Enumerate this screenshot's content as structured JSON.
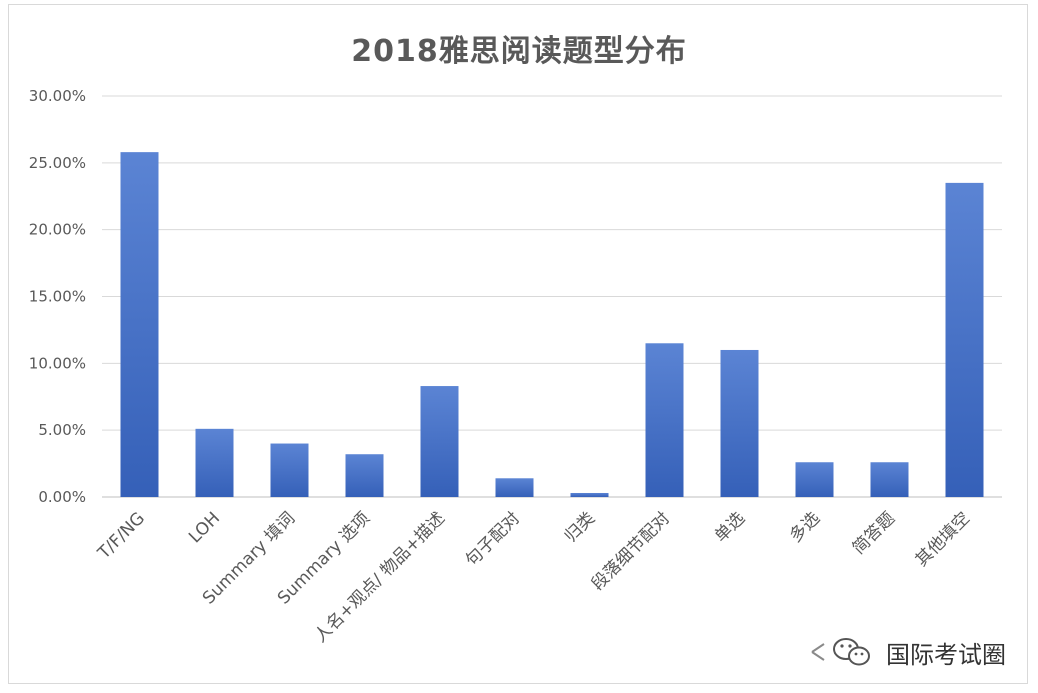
{
  "chart_data": {
    "type": "bar",
    "title": "2018雅思阅读题型分布",
    "categories": [
      "T/F/NG",
      "LOH",
      "Summary 填词",
      "Summary 选项",
      "人名+观点/ 物品+描述",
      "句子配对",
      "归类",
      "段落细节配对",
      "单选",
      "多选",
      "简答题",
      "其他填空"
    ],
    "values": [
      25.8,
      5.1,
      4.0,
      3.2,
      8.3,
      1.4,
      0.3,
      11.5,
      11.0,
      2.6,
      2.6,
      23.5
    ],
    "y_ticks": [
      "0.00%",
      "5.00%",
      "10.00%",
      "15.00%",
      "20.00%",
      "25.00%",
      "30.00%"
    ],
    "ylim": [
      0,
      30
    ],
    "grid": true,
    "bar_color": "#4472c4"
  },
  "watermark": {
    "text": "国际考试圈",
    "icon": "wechat-logo-icon"
  }
}
